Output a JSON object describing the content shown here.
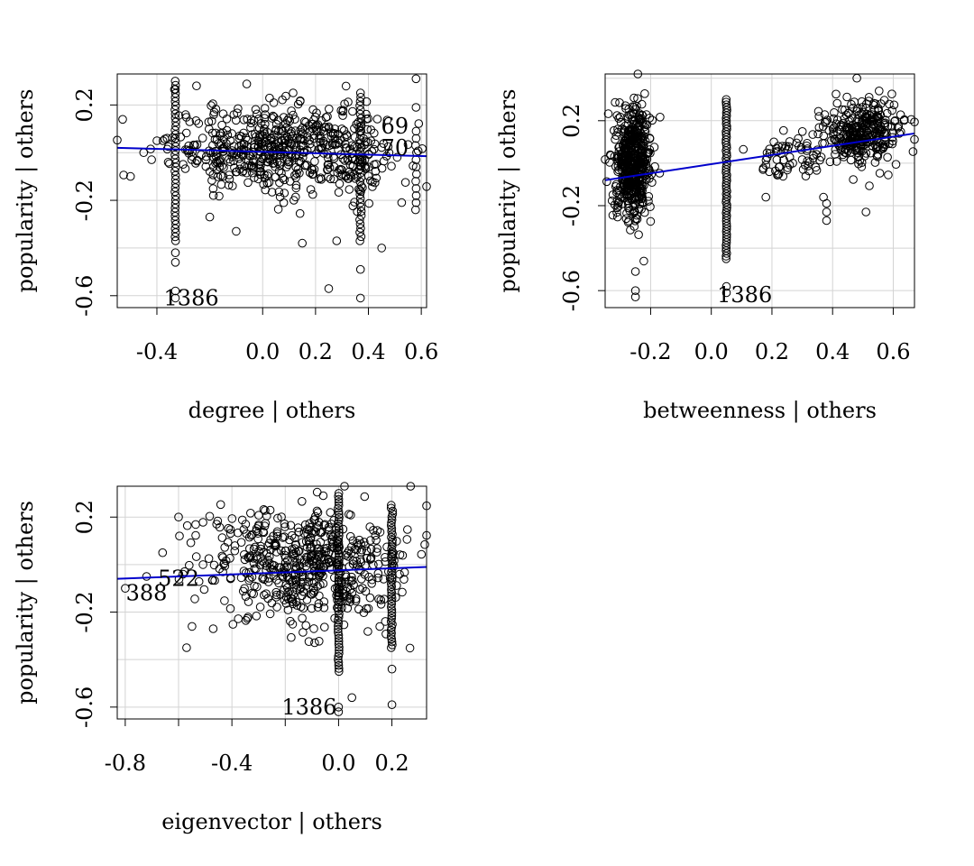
{
  "chart_data": [
    {
      "type": "scatter",
      "xlabel": "degree | others",
      "ylabel": "popularity  | others",
      "xlim": [
        -0.55,
        0.62
      ],
      "ylim": [
        -0.65,
        0.33
      ],
      "xticks": [
        -0.4,
        0.0,
        0.2,
        0.4,
        0.6
      ],
      "xtick_labels": [
        "-0.4",
        "0.0",
        "0.2",
        "0.4",
        "0.6"
      ],
      "yticks": [
        0.2,
        -0.2,
        -0.6
      ],
      "ytick_labels": [
        "0.2",
        "-0.2",
        "-0.6"
      ],
      "grid": true,
      "fit_line": {
        "x": [
          -0.55,
          0.62
        ],
        "y": [
          0.02,
          -0.015
        ]
      },
      "point_labels": [
        {
          "text": "1386",
          "x": -0.27,
          "y": -0.61
        },
        {
          "text": "69",
          "x": 0.5,
          "y": 0.11
        },
        {
          "text": "70",
          "x": 0.5,
          "y": 0.02
        }
      ],
      "clusters": [
        {
          "kind": "column",
          "x": -0.33,
          "y_from": -0.37,
          "y_to": 0.3,
          "n": 40,
          "jitter": 0.004
        },
        {
          "kind": "column",
          "x": 0.37,
          "y_from": -0.37,
          "y_to": 0.25,
          "n": 36,
          "jitter": 0.006
        },
        {
          "kind": "column",
          "x": 0.58,
          "y_from": -0.24,
          "y_to": 0.09,
          "n": 12,
          "jitter": 0.004
        },
        {
          "kind": "blob",
          "cx": 0.05,
          "cy": 0.02,
          "sx": 0.2,
          "sy": 0.09,
          "n": 520
        },
        {
          "kind": "blob",
          "cx": 0.35,
          "cy": 0.0,
          "sx": 0.06,
          "sy": 0.1,
          "n": 70
        }
      ],
      "points": [
        {
          "x": -0.5,
          "y": -0.1
        },
        {
          "x": -0.45,
          "y": 0.0
        },
        {
          "x": -0.4,
          "y": 0.05
        },
        {
          "x": -0.42,
          "y": -0.03
        },
        {
          "x": -0.33,
          "y": -0.61
        },
        {
          "x": -0.33,
          "y": -0.58
        },
        {
          "x": -0.33,
          "y": -0.46
        },
        {
          "x": -0.33,
          "y": -0.42
        },
        {
          "x": 0.25,
          "y": -0.57
        },
        {
          "x": 0.37,
          "y": -0.61
        },
        {
          "x": 0.37,
          "y": -0.49
        },
        {
          "x": 0.45,
          "y": -0.4
        },
        {
          "x": 0.28,
          "y": -0.37
        },
        {
          "x": 0.58,
          "y": 0.31
        },
        {
          "x": -0.2,
          "y": -0.27
        },
        {
          "x": -0.1,
          "y": -0.33
        },
        {
          "x": 0.15,
          "y": -0.38
        },
        {
          "x": -0.25,
          "y": 0.28
        },
        {
          "x": 0.58,
          "y": 0.19
        }
      ]
    },
    {
      "type": "scatter",
      "xlabel": "betweenness | others",
      "ylabel": "popularity  | others",
      "xlim": [
        -0.35,
        0.67
      ],
      "ylim": [
        -0.68,
        0.42
      ],
      "xticks": [
        -0.2,
        0.0,
        0.2,
        0.4,
        0.6
      ],
      "xtick_labels": [
        "-0.2",
        "0.0",
        "0.2",
        "0.4",
        "0.6"
      ],
      "yticks": [
        0.2,
        -0.2,
        -0.6
      ],
      "ytick_labels": [
        "0.2",
        "-0.2",
        "-0.6"
      ],
      "grid": true,
      "fit_line": {
        "x": [
          -0.35,
          0.67
        ],
        "y": [
          -0.08,
          0.14
        ]
      },
      "point_labels": [
        {
          "text": "1386",
          "x": 0.11,
          "y": -0.62
        }
      ],
      "clusters": [
        {
          "kind": "blob",
          "cx": -0.26,
          "cy": 0.0,
          "sx": 0.03,
          "sy": 0.13,
          "n": 520
        },
        {
          "kind": "column",
          "x": 0.05,
          "y_from": -0.45,
          "y_to": 0.3,
          "n": 60,
          "jitter": 0.003
        },
        {
          "kind": "blob",
          "cx": 0.5,
          "cy": 0.15,
          "sx": 0.06,
          "sy": 0.07,
          "n": 300
        },
        {
          "kind": "blob",
          "cx": 0.28,
          "cy": 0.04,
          "sx": 0.07,
          "sy": 0.05,
          "n": 70
        }
      ],
      "points": [
        {
          "x": 0.05,
          "y": -0.61
        },
        {
          "x": 0.05,
          "y": -0.58
        },
        {
          "x": -0.25,
          "y": -0.63
        },
        {
          "x": -0.25,
          "y": -0.6
        },
        {
          "x": -0.25,
          "y": -0.51
        },
        {
          "x": 0.38,
          "y": -0.27
        },
        {
          "x": 0.38,
          "y": -0.23
        },
        {
          "x": 0.38,
          "y": -0.19
        },
        {
          "x": 0.37,
          "y": -0.16
        },
        {
          "x": 0.51,
          "y": -0.23
        },
        {
          "x": 0.48,
          "y": 0.4
        },
        {
          "x": 0.18,
          "y": -0.16
        }
      ]
    },
    {
      "type": "scatter",
      "xlabel": "eigenvector | others",
      "ylabel": "popularity  | others",
      "xlim": [
        -0.83,
        0.33
      ],
      "ylim": [
        -0.65,
        0.33
      ],
      "xticks": [
        -0.8,
        -0.6,
        -0.4,
        -0.2,
        0.0,
        0.2
      ],
      "xtick_labels": [
        "-0.8",
        "",
        "-0.4",
        "",
        "0.0",
        "0.2"
      ],
      "yticks": [
        0.2,
        -0.2,
        -0.6
      ],
      "ytick_labels": [
        "0.2",
        "-0.2",
        "-0.6"
      ],
      "grid": true,
      "fit_line": {
        "x": [
          -0.83,
          0.33
        ],
        "y": [
          -0.06,
          -0.01
        ]
      },
      "point_labels": [
        {
          "text": "522",
          "x": -0.6,
          "y": -0.06
        },
        {
          "text": "388",
          "x": -0.72,
          "y": -0.12
        },
        {
          "text": "1386",
          "x": -0.11,
          "y": -0.6
        }
      ],
      "clusters": [
        {
          "kind": "column",
          "x": 0.0,
          "y_from": -0.45,
          "y_to": 0.3,
          "n": 60,
          "jitter": 0.004
        },
        {
          "kind": "column",
          "x": 0.2,
          "y_from": -0.35,
          "y_to": 0.25,
          "n": 50,
          "jitter": 0.006
        },
        {
          "kind": "blob",
          "cx": -0.08,
          "cy": 0.0,
          "sx": 0.16,
          "sy": 0.12,
          "n": 460
        },
        {
          "kind": "blob",
          "cx": -0.35,
          "cy": 0.02,
          "sx": 0.12,
          "sy": 0.11,
          "n": 90
        }
      ],
      "points": [
        {
          "x": -0.8,
          "y": -0.1
        },
        {
          "x": -0.72,
          "y": -0.05
        },
        {
          "x": -0.66,
          "y": 0.05
        },
        {
          "x": -0.6,
          "y": 0.2
        },
        {
          "x": -0.57,
          "y": -0.35
        },
        {
          "x": -0.47,
          "y": -0.27
        },
        {
          "x": 0.0,
          "y": -0.62
        },
        {
          "x": 0.0,
          "y": -0.6
        },
        {
          "x": 0.05,
          "y": -0.56
        },
        {
          "x": 0.2,
          "y": -0.59
        },
        {
          "x": 0.2,
          "y": -0.44
        },
        {
          "x": 0.27,
          "y": 0.33
        }
      ]
    }
  ]
}
